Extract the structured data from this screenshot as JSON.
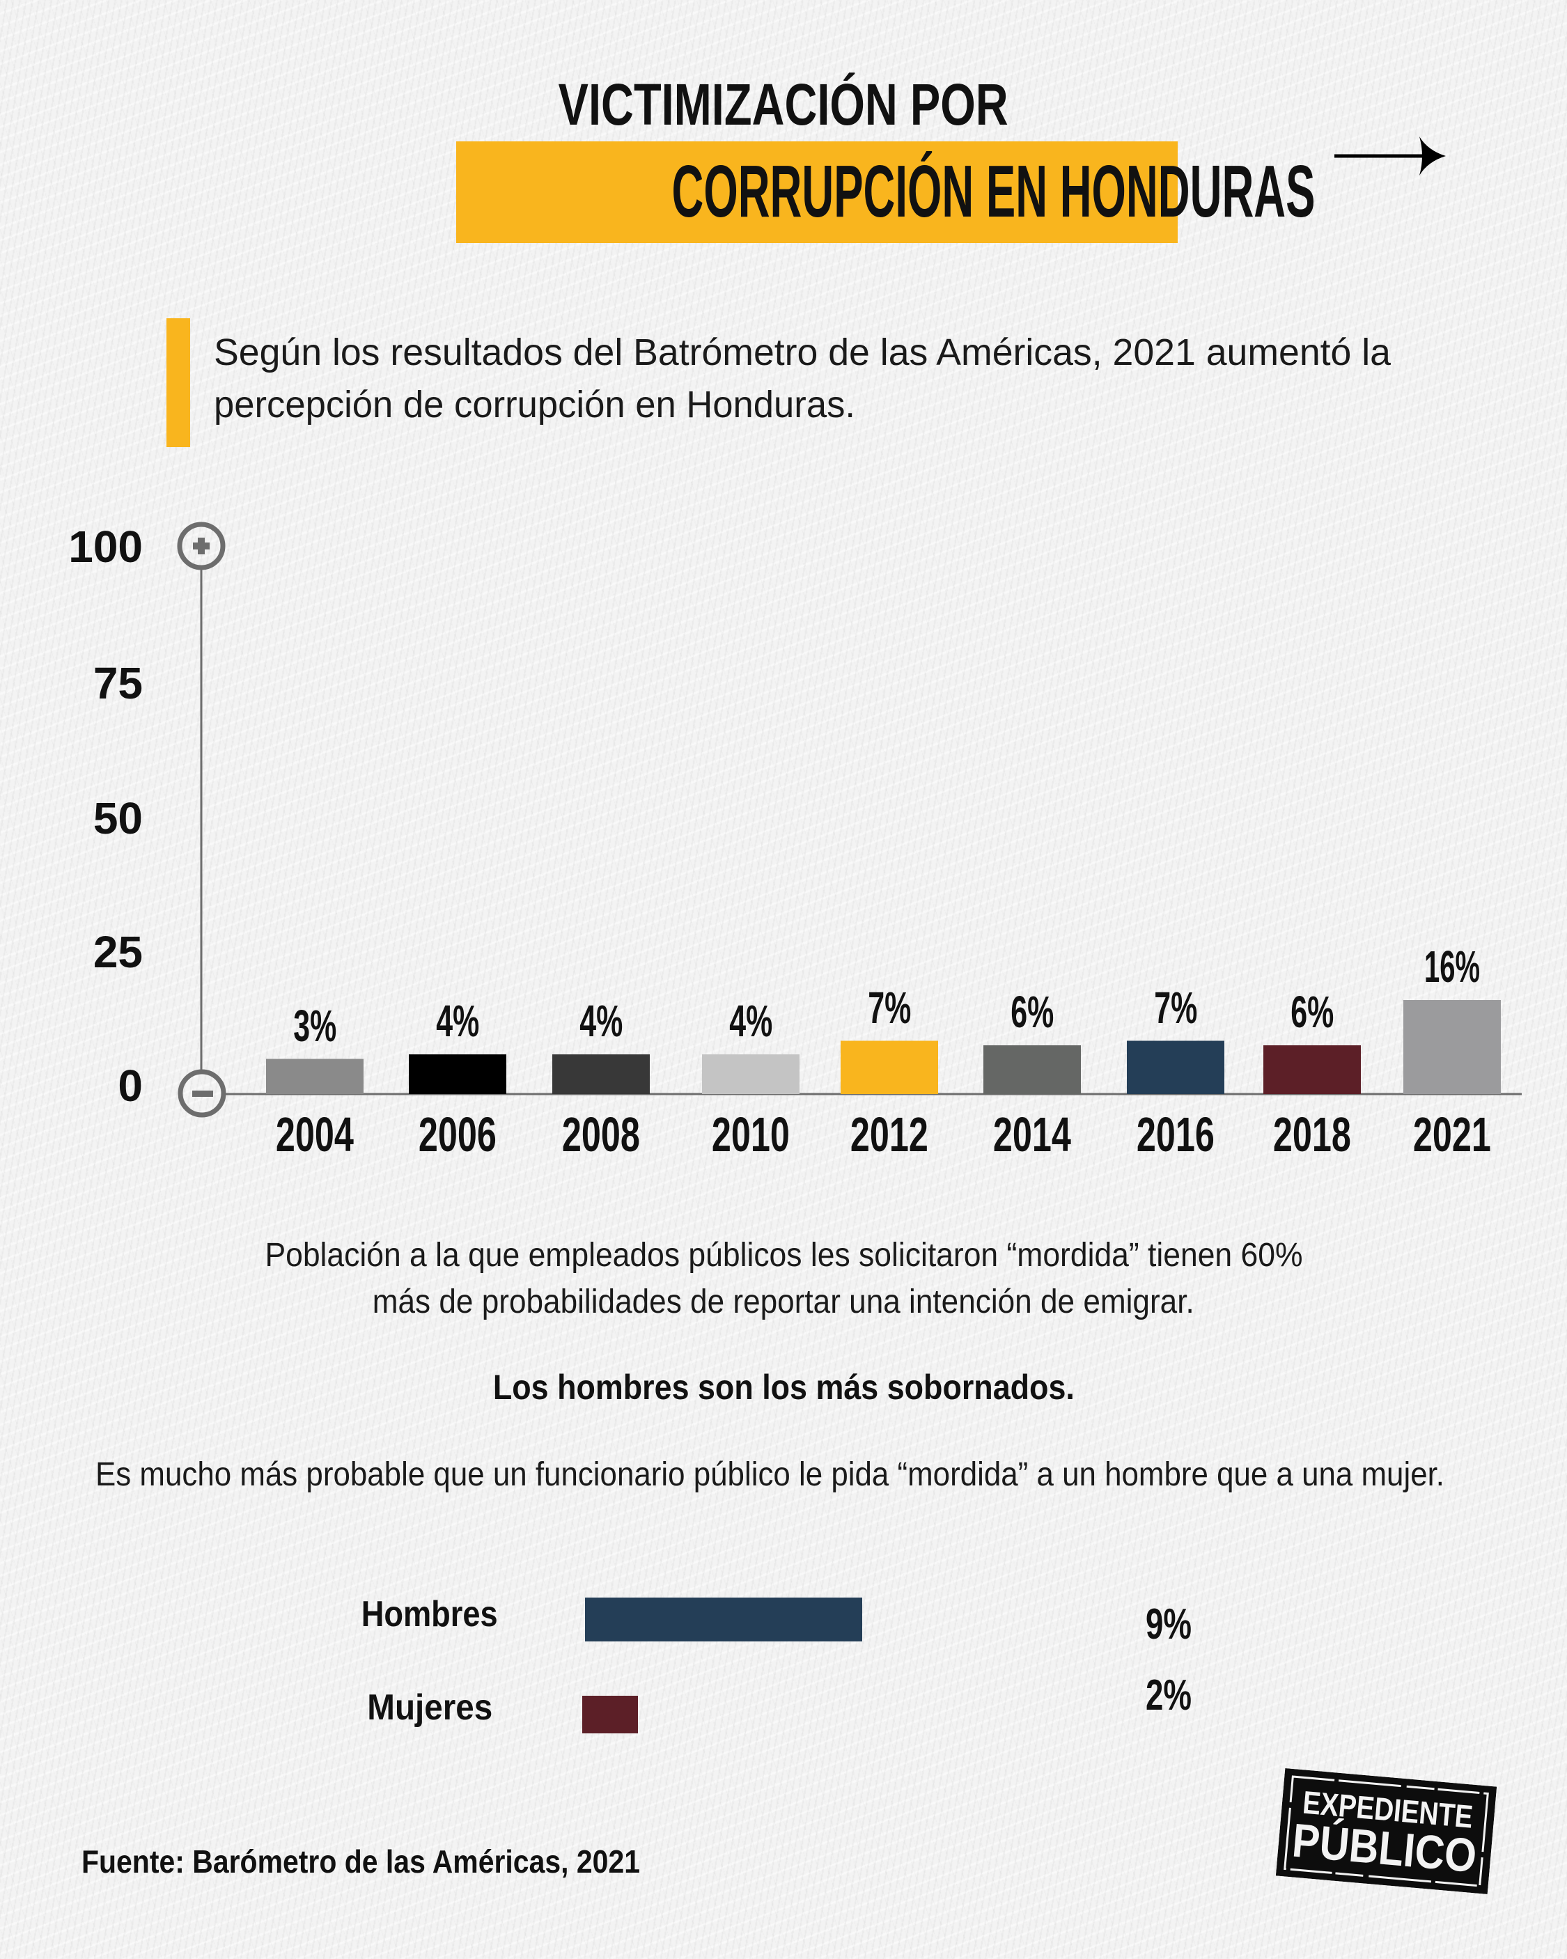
{
  "header": {
    "title_line1": "VICTIMIZACIÓN POR",
    "title_line2": "CORRUPCIÓN EN HONDURAS",
    "highlight_color": "#f9b51e",
    "next_icon": "arrow-right-icon"
  },
  "intro": {
    "line1": "Según los resultados del Batrómetro de las Américas, 2021 aumentó la",
    "line2": "percepción de corrupción en Honduras."
  },
  "chart_data": {
    "type": "bar",
    "title": "",
    "xlabel": "",
    "ylabel": "",
    "ylim": [
      0,
      100
    ],
    "yticks": [
      "100",
      "75",
      "50",
      "25",
      "0"
    ],
    "ytick_values": [
      100,
      75,
      50,
      25,
      0
    ],
    "axis_top_icon": "plus-circle-icon",
    "axis_bottom_icon": "minus-circle-icon",
    "categories": [
      "2004",
      "2006",
      "2008",
      "2010",
      "2012",
      "2014",
      "2016",
      "2018",
      "2021"
    ],
    "values": [
      3,
      4,
      4,
      4,
      7,
      6,
      7,
      6,
      16
    ],
    "labels": [
      "3%",
      "4%",
      "4%",
      "4%",
      "7%",
      "6%",
      "7%",
      "6%",
      "16%"
    ],
    "colors": [
      "#8a8a8a",
      "#000000",
      "#383838",
      "#c4c4c4",
      "#f9b51e",
      "#656765",
      "#243e57",
      "#5c1f27",
      "#9b9b9d"
    ],
    "grid": false,
    "legend": "none"
  },
  "notes": {
    "line1": "Población a la que empleados públicos les solicitaron “mordida” tienen 60%",
    "line2": "más de probabilidades de reportar una intención de emigrar.",
    "bold": "Los hombres son los más sobornados.",
    "paragraph": "Es mucho más probable que un funcionario público le pida “mordida” a un hombre que a una mujer."
  },
  "gender": [
    {
      "label": "Hombres",
      "value": 9,
      "value_label": "9%",
      "color": "#243e57"
    },
    {
      "label": "Mujeres",
      "value": 2,
      "value_label": "2%",
      "color": "#5c1f27"
    }
  ],
  "source": "Fuente: Barómetro de las Américas, 2021",
  "logo": {
    "line1": "EXPEDIENTE",
    "line2": "PÚBLICO"
  }
}
